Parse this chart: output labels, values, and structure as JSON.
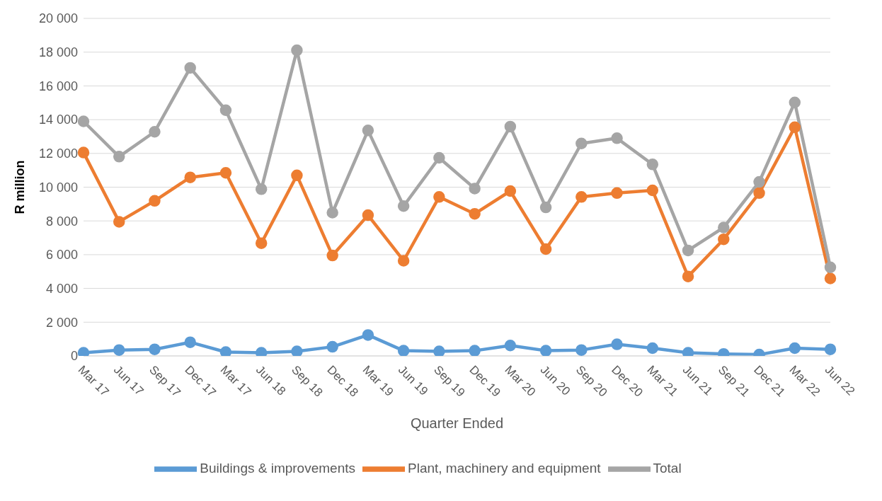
{
  "chart_data": {
    "type": "line",
    "xlabel": "Quarter Ended",
    "ylabel": "R million",
    "categories": [
      "Mar 17",
      "Jun 17",
      "Sep 17",
      "Dec 17",
      "Mar 17",
      "Jun 18",
      "Sep 18",
      "Dec 18",
      "Mar 19",
      "Jun 19",
      "Sep 19",
      "Dec 19",
      "Mar 20",
      "Jun 20",
      "Sep 20",
      "Dec 20",
      "Mar 21",
      "Jun 21",
      "Sep 21",
      "Dec 21",
      "Mar 22",
      "Jun 22"
    ],
    "series": [
      {
        "name": "Buildings & improvements",
        "color": "#5b9bd5",
        "values": [
          190,
          350,
          390,
          810,
          230,
          190,
          270,
          540,
          1240,
          310,
          270,
          310,
          620,
          310,
          350,
          690,
          460,
          190,
          120,
          80,
          460,
          390
        ]
      },
      {
        "name": "Plant, machinery and equipment",
        "color": "#ed7d31",
        "values": [
          12050,
          7950,
          9190,
          10580,
          10850,
          6680,
          10700,
          5950,
          8340,
          5640,
          9420,
          8420,
          9770,
          6330,
          9420,
          9650,
          9810,
          4710,
          6910,
          9650,
          13550,
          4590
        ]
      },
      {
        "name": "Total",
        "color": "#a5a5a5",
        "values": [
          13900,
          11810,
          13280,
          17070,
          14560,
          9880,
          18110,
          8490,
          13360,
          8880,
          11740,
          9920,
          13590,
          8800,
          12590,
          12900,
          11350,
          6250,
          7610,
          10310,
          15020,
          5250
        ]
      }
    ],
    "ylim": [
      0,
      20000
    ],
    "yticks": [
      {
        "value": 0,
        "label": "0"
      },
      {
        "value": 2000,
        "label": "2 000"
      },
      {
        "value": 4000,
        "label": "4 000"
      },
      {
        "value": 6000,
        "label": "6 000"
      },
      {
        "value": 8000,
        "label": "8 000"
      },
      {
        "value": 10000,
        "label": "10 000"
      },
      {
        "value": 12000,
        "label": "12 000"
      },
      {
        "value": 14000,
        "label": "14 000"
      },
      {
        "value": 16000,
        "label": "16 000"
      },
      {
        "value": 18000,
        "label": "18 000"
      },
      {
        "value": 20000,
        "label": "20 000"
      }
    ],
    "grid": "y",
    "legend": "bottom",
    "marker": "circle",
    "line_style": "solid"
  }
}
